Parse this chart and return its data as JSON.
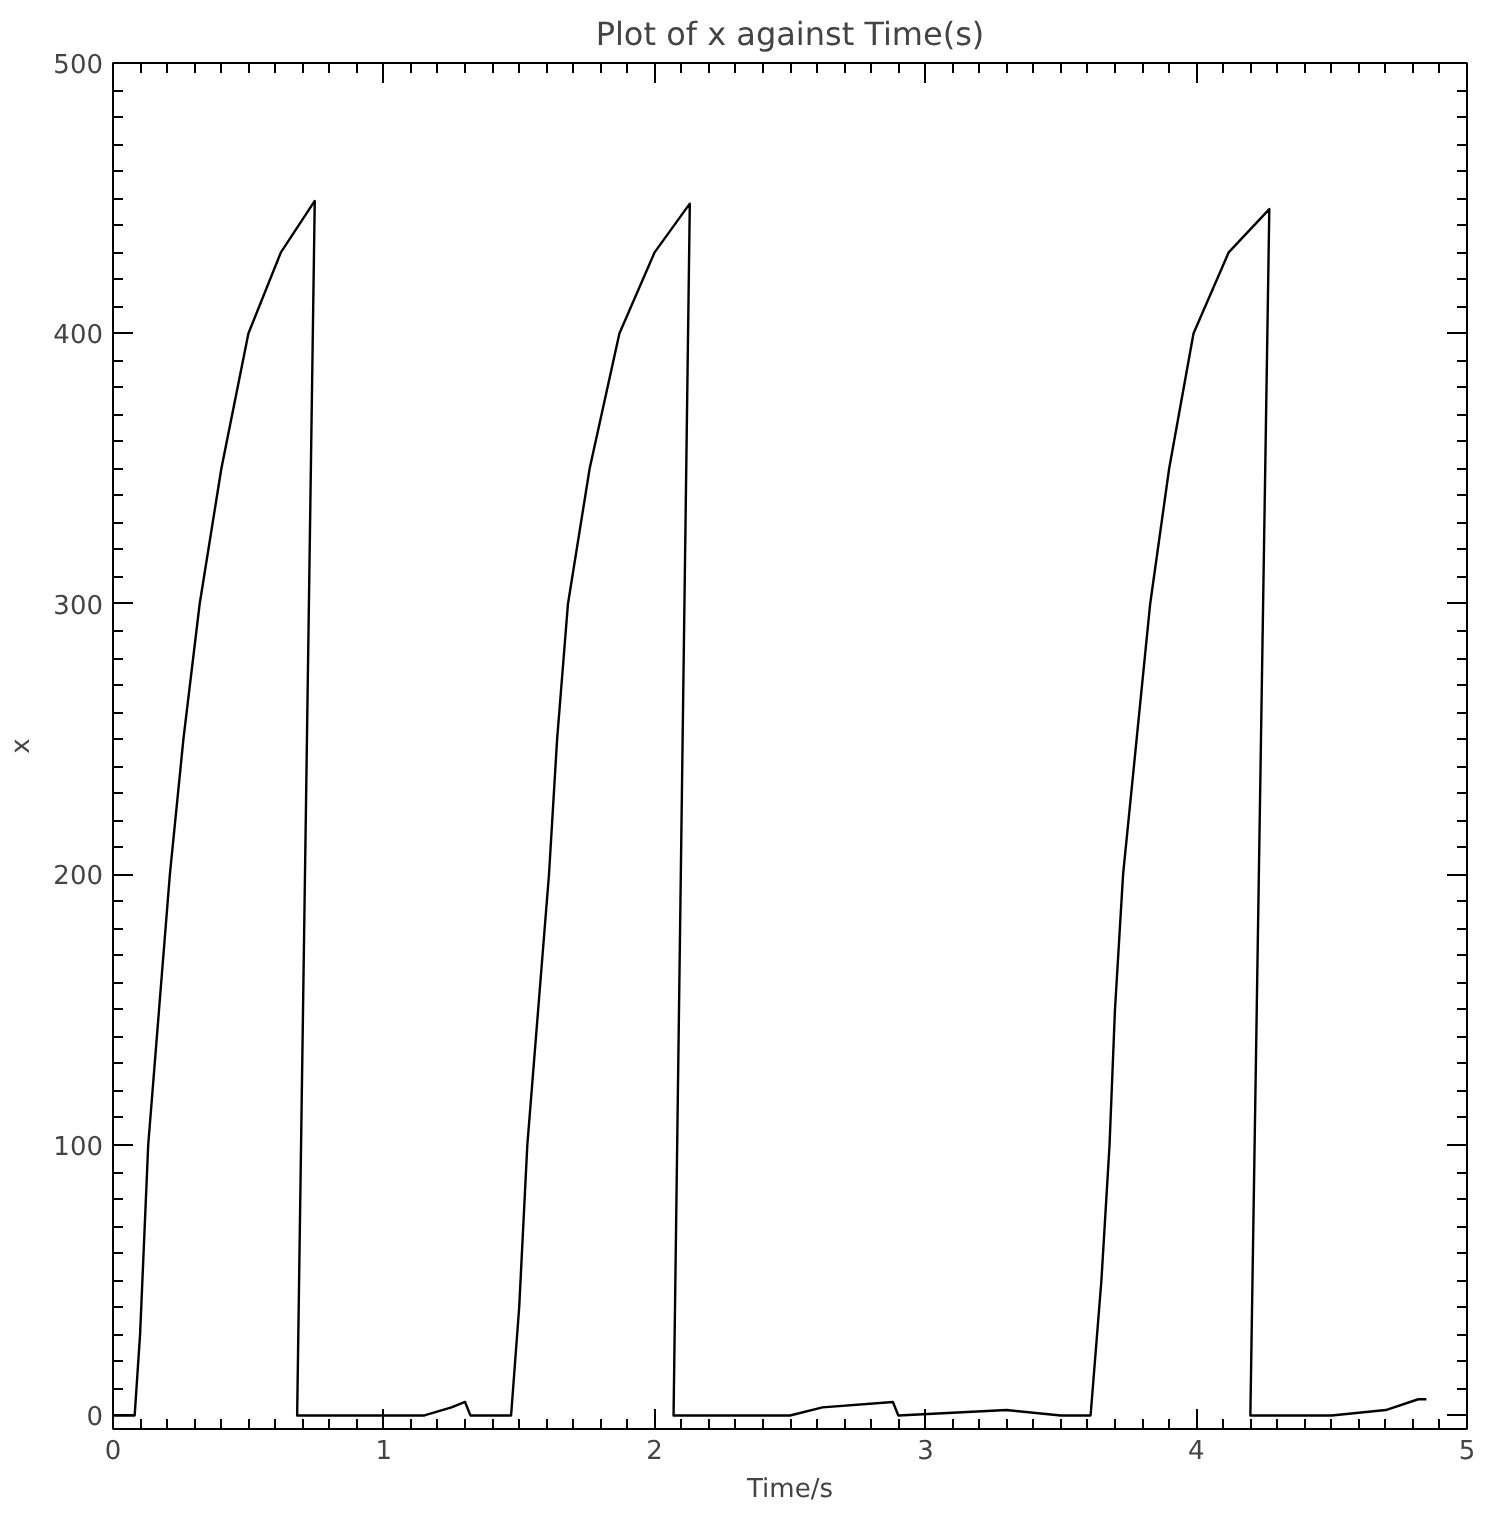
{
  "chart_data": {
    "type": "line",
    "title": "Plot of x against Time(s)",
    "xlabel": "Time/s",
    "ylabel": "x",
    "xlim": [
      0,
      5
    ],
    "ylim": [
      -5,
      500
    ],
    "xticks": [
      0,
      1,
      2,
      3,
      4,
      5
    ],
    "yticks": [
      0,
      100,
      200,
      300,
      400,
      500
    ],
    "grid": false,
    "tick_labels": "xy",
    "line_style": "solid",
    "series": [
      {
        "color": "#000000",
        "x": [
          0,
          0.05,
          0.08,
          0.1,
          0.13,
          0.17,
          0.21,
          0.26,
          0.32,
          0.4,
          0.5,
          0.62,
          0.745,
          0.68,
          1.0,
          1.15,
          1.25,
          1.3,
          1.32,
          1.47,
          1.5,
          1.53,
          1.57,
          1.61,
          1.64,
          1.68,
          1.76,
          1.87,
          2.0,
          2.13,
          2.07,
          2.5,
          2.62,
          2.88,
          2.9,
          3.3,
          3.5,
          3.61,
          3.65,
          3.68,
          3.7,
          3.73,
          3.78,
          3.83,
          3.9,
          3.99,
          4.12,
          4.27,
          4.2,
          4.5,
          4.7,
          4.82,
          4.85
        ],
        "values": [
          0,
          0,
          0,
          30,
          100,
          150,
          200,
          250,
          300,
          350,
          400,
          430,
          449,
          0,
          0,
          0,
          3,
          5,
          0,
          0,
          40,
          100,
          150,
          200,
          250,
          300,
          350,
          400,
          430,
          448,
          0,
          0,
          3,
          5,
          0,
          2,
          0,
          0,
          50,
          100,
          150,
          200,
          250,
          300,
          350,
          400,
          430,
          446,
          0,
          0,
          2,
          6,
          6
        ]
      }
    ]
  }
}
